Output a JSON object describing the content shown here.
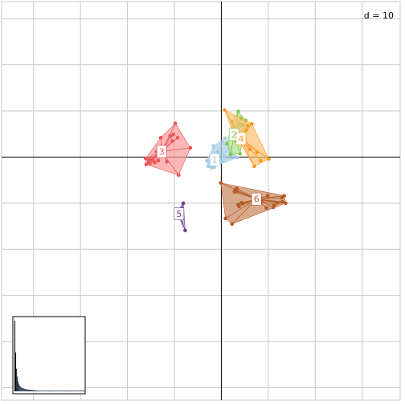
{
  "chart_data": {
    "type": "scatter",
    "grid_label": "d = 10",
    "xlim": [
      -46.8,
      38.1
    ],
    "ylim": [
      -52.7,
      33.7
    ],
    "grid_step": 10,
    "groups": [
      {
        "label": "1",
        "color": "#a6cee3",
        "fill": "#a6cee3",
        "centroid": [
          -1.4,
          -0.6
        ],
        "hull": [
          [
            0.8,
            4.1
          ],
          [
            2.0,
            2.0
          ],
          [
            3.4,
            -0.1
          ],
          [
            -2.1,
            -2.3
          ],
          [
            -2.8,
            -2.0
          ],
          [
            -3.1,
            -0.8
          ],
          [
            -1.7,
            2.4
          ]
        ],
        "points": [
          [
            0.8,
            4.1
          ],
          [
            2.0,
            2.0
          ],
          [
            3.4,
            -0.1
          ],
          [
            -2.1,
            -2.3
          ],
          [
            -2.8,
            -2.0
          ],
          [
            -3.1,
            -0.8
          ],
          [
            -1.7,
            2.4
          ],
          [
            -0.4,
            0.7
          ],
          [
            0.2,
            -0.9
          ],
          [
            -1.1,
            -1.5
          ],
          [
            -2.4,
            -1.2
          ],
          [
            -1.9,
            -0.3
          ],
          [
            -0.8,
            1.2
          ],
          [
            0.6,
            0.2
          ],
          [
            -2.2,
            -1.7
          ],
          [
            -1.5,
            -2.2
          ]
        ]
      },
      {
        "label": "2",
        "color": "#7fc64e",
        "fill": "#b2df8a",
        "centroid": [
          2.7,
          4.9
        ],
        "hull": [
          [
            3.6,
            9.9
          ],
          [
            5.2,
            7.9
          ],
          [
            4.0,
            0.7
          ],
          [
            2.0,
            0.6
          ],
          [
            1.2,
            2.9
          ],
          [
            2.3,
            7.7
          ]
        ],
        "points": [
          [
            3.6,
            9.9
          ],
          [
            5.2,
            7.9
          ],
          [
            4.0,
            0.7
          ],
          [
            2.0,
            0.6
          ],
          [
            1.2,
            2.9
          ],
          [
            2.3,
            7.7
          ],
          [
            3.3,
            6.1
          ],
          [
            4.2,
            8.4
          ],
          [
            2.8,
            5.4
          ],
          [
            4.6,
            6.9
          ],
          [
            3.1,
            3.5
          ],
          [
            3.9,
            7.2
          ]
        ]
      },
      {
        "label": "4",
        "color": "#f59a25",
        "fill": "#fdbf6f",
        "centroid": [
          4.2,
          4.0
        ],
        "hull": [
          [
            0.7,
            10.2
          ],
          [
            6.5,
            7.2
          ],
          [
            10.1,
            -0.4
          ],
          [
            7.0,
            -2.0
          ],
          [
            2.3,
            5.9
          ]
        ],
        "points": [
          [
            0.7,
            10.2
          ],
          [
            6.5,
            7.2
          ],
          [
            10.1,
            -0.4
          ],
          [
            7.0,
            -2.0
          ],
          [
            2.3,
            5.9
          ],
          [
            3.1,
            4.5
          ],
          [
            3.8,
            4.1
          ],
          [
            4.4,
            3.9
          ],
          [
            5.6,
            6.8
          ],
          [
            5.3,
            5.9
          ],
          [
            4.0,
            4.6
          ],
          [
            3.6,
            3.9
          ],
          [
            2.9,
            4.6
          ],
          [
            4.9,
            3.6
          ],
          [
            8.4,
            -0.8
          ],
          [
            6.0,
            1.7
          ],
          [
            7.6,
            1.0
          ]
        ]
      },
      {
        "label": "3",
        "color": "#e8565b",
        "fill": "#fb9a99",
        "centroid": [
          -12.7,
          1.2
        ],
        "hull": [
          [
            -9.8,
            7.3
          ],
          [
            -6.6,
            2.0
          ],
          [
            -9.1,
            -3.9
          ],
          [
            -16.0,
            -1.6
          ],
          [
            -16.1,
            -0.3
          ],
          [
            -12.9,
            4.2
          ]
        ],
        "points": [
          [
            -9.8,
            7.3
          ],
          [
            -6.6,
            2.0
          ],
          [
            -9.1,
            -3.9
          ],
          [
            -16.0,
            -1.6
          ],
          [
            -16.1,
            -0.3
          ],
          [
            -12.9,
            4.2
          ],
          [
            -10.2,
            4.9
          ],
          [
            -9.3,
            4.2
          ],
          [
            -10.9,
            4.6
          ],
          [
            -13.8,
            1.2
          ],
          [
            -14.6,
            -0.7
          ],
          [
            -15.3,
            -0.5
          ],
          [
            -14.2,
            -1.2
          ],
          [
            -13.4,
            -0.8
          ],
          [
            -11.6,
            -1.0
          ],
          [
            -15.5,
            -0.9
          ],
          [
            -15.2,
            -1.4
          ],
          [
            -10.4,
            3.5
          ]
        ]
      },
      {
        "label": "6",
        "color": "#b55c2a",
        "fill": "#c8865a",
        "centroid": [
          7.5,
          -9.1
        ],
        "hull": [
          [
            -0.1,
            -5.6
          ],
          [
            13.4,
            -8.4
          ],
          [
            13.7,
            -10.0
          ],
          [
            2.3,
            -14.5
          ],
          [
            0.9,
            -13.3
          ]
        ],
        "points": [
          [
            -0.1,
            -5.6
          ],
          [
            13.4,
            -8.4
          ],
          [
            13.7,
            -10.0
          ],
          [
            2.3,
            -14.5
          ],
          [
            0.9,
            -13.3
          ],
          [
            3.0,
            -7.1
          ],
          [
            3.3,
            -6.8
          ],
          [
            2.8,
            -7.5
          ],
          [
            4.3,
            -9.9
          ],
          [
            3.8,
            -10.7
          ],
          [
            4.6,
            -10.1
          ],
          [
            8.6,
            -9.6
          ],
          [
            9.9,
            -8.4
          ],
          [
            11.3,
            -10.4
          ],
          [
            12.0,
            -9.9
          ],
          [
            13.0,
            -9.7
          ],
          [
            12.9,
            -8.8
          ],
          [
            9.6,
            -11.0
          ],
          [
            11.1,
            -10.9
          ],
          [
            3.2,
            -7.5
          ],
          [
            3.6,
            -10.3
          ]
        ]
      },
      {
        "label": "5",
        "color": "#6a3d9a",
        "fill": "#b294c7",
        "centroid": [
          -9.0,
          -12.3
        ],
        "hull": [
          [
            -8.1,
            -10.0
          ],
          [
            -7.7,
            -15.9
          ],
          [
            -9.5,
            -12.0
          ]
        ],
        "points": [
          [
            -8.1,
            -10.0
          ],
          [
            -7.7,
            -15.9
          ],
          [
            -9.5,
            -12.0
          ],
          [
            -9.3,
            -11.9
          ],
          [
            -9.0,
            -12.4
          ],
          [
            -8.4,
            -11.2
          ]
        ]
      }
    ],
    "eigenvalues": [
      1.0,
      0.55,
      0.32,
      0.21,
      0.14,
      0.1,
      0.08,
      0.065,
      0.055,
      0.05,
      0.045,
      0.04,
      0.035,
      0.032,
      0.03,
      0.028,
      0.026,
      0.024,
      0.022,
      0.02,
      0.019,
      0.018,
      0.017,
      0.016,
      0.015,
      0.014,
      0.013,
      0.012,
      0.012,
      0.011,
      0.011,
      0.01,
      0.01,
      0.01,
      0.01,
      0.01,
      0.01,
      0.01,
      0.01,
      0.01,
      0.01,
      0.01,
      0.01,
      0.01,
      0.01,
      0.01,
      0.01,
      0.01,
      0.01,
      0.01,
      0.01,
      0.01,
      0.01,
      0.01,
      0.01,
      0.01,
      0.01,
      0.01,
      0.01,
      0.01,
      0.01,
      0.01,
      0.01,
      0.01,
      0.01,
      0.01,
      0.01,
      0.01,
      0.01,
      0.01,
      0.01,
      0.01,
      0.01,
      0.01,
      0.01,
      0.01,
      0.01,
      0.01,
      0.01,
      0.01,
      0.01,
      0.01,
      0.01,
      0.01,
      0.01,
      0.01
    ]
  }
}
